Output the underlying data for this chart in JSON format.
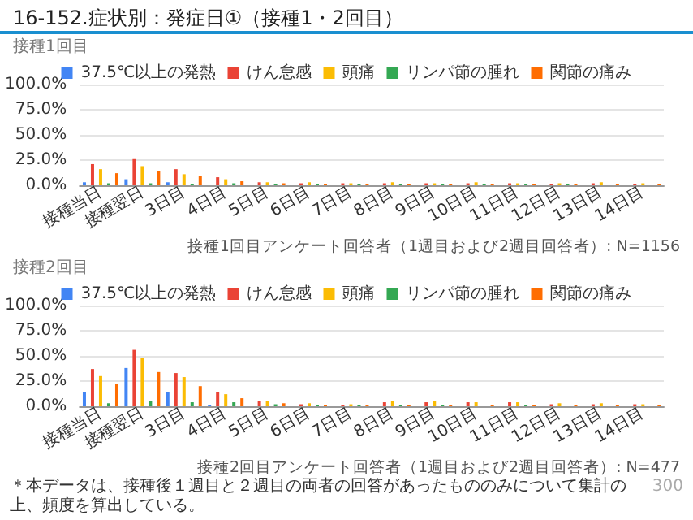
{
  "chart_data": [
    {
      "type": "bar",
      "title": "16-152.症状別：発症日①（接種1・2回目）",
      "subtitle": "接種1回目",
      "categories": [
        "接種当日",
        "接種翌日",
        "3日目",
        "4日目",
        "5日目",
        "6日目",
        "7日目",
        "8日目",
        "9日目",
        "10日目",
        "11日目",
        "12日目",
        "13日目",
        "14日目"
      ],
      "series": [
        {
          "name": "37.5℃以上の発熱",
          "color": "#4285f4",
          "values": [
            3,
            6,
            3,
            0,
            0,
            0,
            0,
            0,
            0,
            0,
            0,
            0,
            0,
            0
          ]
        },
        {
          "name": "けん怠感",
          "color": "#ea4335",
          "values": [
            21,
            26,
            16,
            8,
            3,
            2,
            2,
            2,
            2,
            2,
            2,
            1,
            2,
            1
          ]
        },
        {
          "name": "頭痛",
          "color": "#fbbc04",
          "values": [
            16,
            19,
            11,
            6,
            3,
            3,
            2,
            3,
            2,
            3,
            2,
            2,
            3,
            2
          ]
        },
        {
          "name": "リンパ節の腫れ",
          "color": "#34a853",
          "values": [
            2,
            2,
            1,
            2,
            1,
            1,
            1,
            1,
            1,
            1,
            1,
            1,
            0,
            0
          ]
        },
        {
          "name": "関節の痛み",
          "color": "#ff6d01",
          "values": [
            12,
            14,
            9,
            4,
            2,
            1,
            1,
            1,
            1,
            1,
            1,
            1,
            1,
            1
          ]
        }
      ],
      "ylim": [
        0,
        100
      ],
      "yticks": [
        {
          "value": 0,
          "label": "0.0%"
        },
        {
          "value": 25,
          "label": "25.0%"
        },
        {
          "value": 50,
          "label": "50.0%"
        },
        {
          "value": 75,
          "label": "75.0%"
        },
        {
          "value": 100,
          "label": "100.0%"
        }
      ],
      "grid": "y",
      "legend": "top",
      "annotations": [
        "接種1回目アンケート回答者（1週目および2週目回答者）: N=1156"
      ]
    },
    {
      "type": "bar",
      "subtitle": "接種2回目",
      "categories": [
        "接種当日",
        "接種翌日",
        "3日目",
        "4日目",
        "5日目",
        "6日目",
        "7日目",
        "8日目",
        "9日目",
        "10日目",
        "11日目",
        "12日目",
        "13日目",
        "14日目"
      ],
      "series": [
        {
          "name": "37.5℃以上の発熱",
          "color": "#4285f4",
          "values": [
            14,
            38,
            14,
            1,
            0,
            0,
            0,
            0,
            0,
            0,
            0,
            0,
            0,
            0
          ]
        },
        {
          "name": "けん怠感",
          "color": "#ea4335",
          "values": [
            37,
            56,
            33,
            14,
            5,
            2,
            1,
            4,
            4,
            4,
            4,
            2,
            2,
            2
          ]
        },
        {
          "name": "頭痛",
          "color": "#fbbc04",
          "values": [
            30,
            48,
            29,
            12,
            5,
            3,
            2,
            5,
            5,
            4,
            4,
            3,
            3,
            2
          ]
        },
        {
          "name": "リンパ節の腫れ",
          "color": "#34a853",
          "values": [
            3,
            5,
            4,
            4,
            2,
            1,
            1,
            1,
            1,
            0,
            1,
            0,
            0,
            0
          ]
        },
        {
          "name": "関節の痛み",
          "color": "#ff6d01",
          "values": [
            22,
            34,
            20,
            8,
            3,
            1,
            1,
            1,
            1,
            1,
            1,
            1,
            1,
            1
          ]
        }
      ],
      "ylim": [
        0,
        100
      ],
      "yticks": [
        {
          "value": 0,
          "label": "0.0%"
        },
        {
          "value": 25,
          "label": "25.0%"
        },
        {
          "value": 50,
          "label": "50.0%"
        },
        {
          "value": 75,
          "label": "75.0%"
        },
        {
          "value": 100,
          "label": "100.0%"
        }
      ],
      "grid": "y",
      "legend": "top",
      "annotations": [
        "接種2回目アンケート回答者（1週目および2週目回答者）: N=477",
        "＊本データは、接種後１週目と２週目の両者の回答があったもののみについて集計の上、頻度を算出している。",
        "300"
      ]
    }
  ]
}
